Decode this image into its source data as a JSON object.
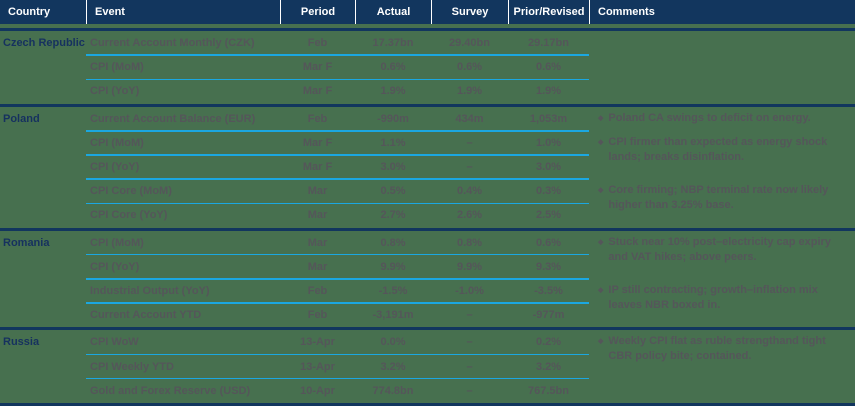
{
  "header": {
    "columns": [
      "Country",
      "Event",
      "Period",
      "Actual",
      "Survey",
      "Prior/Revised",
      "Comments"
    ]
  },
  "colors": {
    "background_green": "#47704f",
    "header_navy": "#12365e",
    "row_separator_cyan": "#1ba7e0",
    "country_text_navy": "#16315f",
    "body_text_gray": "#55565a",
    "header_text": "#ffffff"
  },
  "bullet_glyph": "◆",
  "table": {
    "groups": [
      {
        "country": "Czech Republic",
        "rows": [
          {
            "event": "Current Account Monthly (CZK)",
            "period": "Feb",
            "actual": "17.37bn",
            "survey": "29.40bn",
            "prior": "29.17bn"
          },
          {
            "event": "CPI (MoM)",
            "period": "Mar F",
            "actual": "0.6%",
            "survey": "0.6%",
            "prior": "0.6%"
          },
          {
            "event": "CPI (YoY)",
            "period": "Mar F",
            "actual": "1.9%",
            "survey": "1.9%",
            "prior": "1.9%"
          }
        ],
        "comments": []
      },
      {
        "country": "Poland",
        "rows": [
          {
            "event": "Current Account Balance (EUR)",
            "period": "Feb",
            "actual": "-990m",
            "survey": "434m",
            "prior": "1,053m"
          },
          {
            "event": "CPI (MoM)",
            "period": "Mar F",
            "actual": "1.1%",
            "survey": "–",
            "prior": "1.0%"
          },
          {
            "event": "CPI (YoY)",
            "period": "Mar F",
            "actual": "3.0%",
            "survey": "–",
            "prior": "3.0%"
          },
          {
            "event": "CPI Core (MoM)",
            "period": "Mar",
            "actual": "0.5%",
            "survey": "0.4%",
            "prior": "0.3%"
          },
          {
            "event": "CPI Core (YoY)",
            "period": "Mar",
            "actual": "2.7%",
            "survey": "2.6%",
            "prior": "2.5%"
          }
        ],
        "comments": [
          {
            "row": 0,
            "text": "Poland CA swings to deficit on energy."
          },
          {
            "row": 1,
            "text": "CPI firmer than expected as energy shock lands; breaks disinflation."
          },
          {
            "row": 3,
            "text": "Core firming; NBP terminal rate now likely higher than 3.25% base."
          }
        ]
      },
      {
        "country": "Romania",
        "rows": [
          {
            "event": "CPI (MoM)",
            "period": "Mar",
            "actual": "0.8%",
            "survey": "0.8%",
            "prior": "0.6%"
          },
          {
            "event": "CPI (YoY)",
            "period": "Mar",
            "actual": "9.9%",
            "survey": "9.9%",
            "prior": "9.3%"
          },
          {
            "event": "Industrial Output (YoY)",
            "period": "Feb",
            "actual": "-1.5%",
            "survey": "-1.0%",
            "prior": "-3.5%"
          },
          {
            "event": "Current Account YTD",
            "period": "Feb",
            "actual": "-3,191m",
            "survey": "–",
            "prior": "-977m"
          }
        ],
        "comments": [
          {
            "row": 0,
            "text": "Stuck near 10% post–electricity cap expiry and VAT hikes; above peers."
          },
          {
            "row": 2,
            "text": "IP still contracting; growth–inflation mix leaves NBR boxed in."
          }
        ]
      },
      {
        "country": "Russia",
        "rows": [
          {
            "event": "CPI WoW",
            "period": "13-Apr",
            "actual": "0.0%",
            "survey": "–",
            "prior": "0.2%"
          },
          {
            "event": "CPI Weekly YTD",
            "period": "13-Apr",
            "actual": "3.2%",
            "survey": "–",
            "prior": "3.2%"
          },
          {
            "event": "Gold and Forex Reserve (USD)",
            "period": "10-Apr",
            "actual": "774.8bn",
            "survey": "–",
            "prior": "767.5bn"
          }
        ],
        "comments": [
          {
            "row": 0,
            "text": "Weekly CPI flat as ruble strengthand tight CBR policy bite; contained."
          }
        ]
      }
    ]
  }
}
